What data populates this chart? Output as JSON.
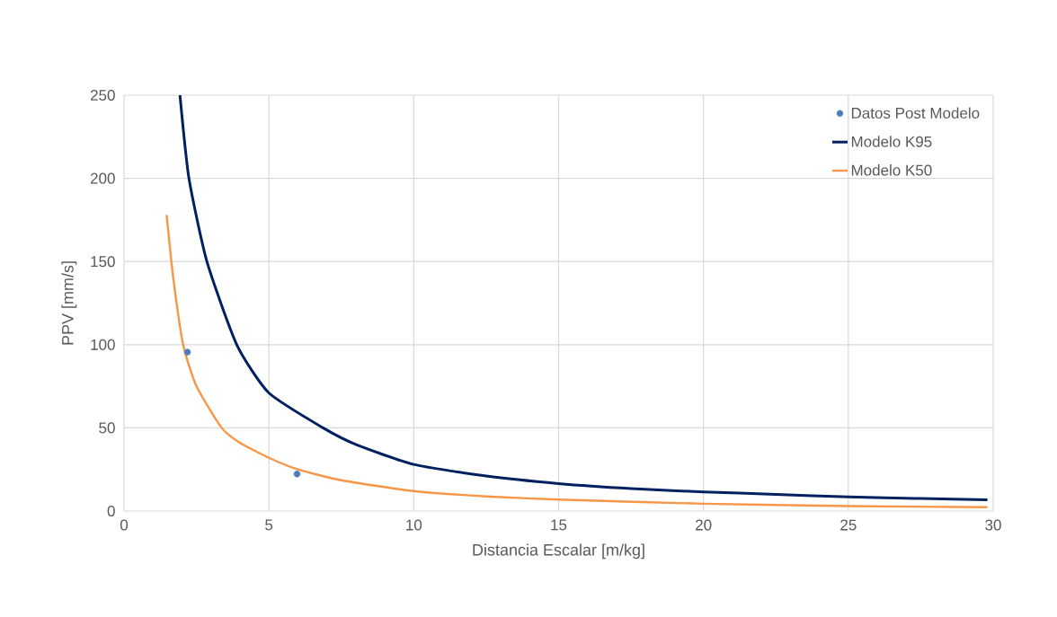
{
  "chart_data": {
    "type": "line",
    "xlabel": "Distancia Escalar [m/kg]",
    "ylabel": "PPV [mm/s]",
    "xlim": [
      0,
      30
    ],
    "xticks": [
      0,
      5,
      10,
      15,
      20,
      25,
      30
    ],
    "ylim": [
      0,
      250
    ],
    "yticks": [
      0,
      50,
      100,
      150,
      200,
      250
    ],
    "grid": true,
    "legend": "top right",
    "series": [
      {
        "name": "Datos Post Modelo",
        "type": "scatter",
        "marker": "circle",
        "color": "#4a7ebb",
        "x": [
          2.19,
          5.97
        ],
        "values": [
          95.5,
          22.2
        ]
      },
      {
        "name": "Modelo K95",
        "color": "#002060",
        "x": [
          1.93,
          2.24,
          2.86,
          3.89,
          5,
          6.87,
          8,
          10,
          12.5,
          15,
          17.5,
          20,
          22.5,
          25,
          27.5,
          29.8
        ],
        "values": [
          250,
          200,
          150,
          100,
          71,
          50,
          40,
          28,
          21,
          16.5,
          13.5,
          11.5,
          10,
          8.5,
          7.5,
          6.7
        ]
      },
      {
        "name": "Modelo K50",
        "color": "#f79646",
        "x": [
          1.47,
          1.7,
          2.04,
          2.5,
          3.37,
          4,
          5,
          6,
          7.5,
          10,
          12.5,
          15,
          20,
          25,
          29.8
        ],
        "values": [
          178,
          140,
          100,
          75,
          50,
          41,
          32,
          25,
          18.5,
          12,
          8.8,
          6.9,
          4.4,
          3,
          2.3
        ]
      }
    ]
  }
}
